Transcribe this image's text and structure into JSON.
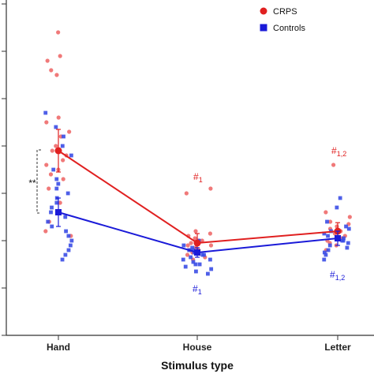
{
  "colors": {
    "crps": "#e02020",
    "controls": "#1a1ad8",
    "crps_light": "#ee6a6a",
    "controls_light": "#3b4ee6",
    "axis": "#333333"
  },
  "chart_data": {
    "type": "line",
    "xlabel": "Stimulus type",
    "ylabel": "",
    "categories": [
      "Hand",
      "House",
      "Letter"
    ],
    "ylim": [
      0,
      7
    ],
    "grid": false,
    "legend_placement": "top-right",
    "series": [
      {
        "name": "CRPS",
        "marker": "circle",
        "means": [
          3.9,
          1.95,
          2.2
        ],
        "errors": [
          0.45,
          0.2,
          0.18
        ],
        "points": [
          [
            6.4,
            5.9,
            5.8,
            5.6,
            5.5,
            4.6,
            4.5,
            4.3,
            4.2,
            4.0,
            3.9,
            3.8,
            3.7,
            3.6,
            3.5,
            3.4,
            3.3,
            3.1,
            2.8,
            2.6,
            2.4,
            2.2,
            2.1
          ],
          [
            3.1,
            3.0,
            2.2,
            2.15,
            2.1,
            2.05,
            2.0,
            2.0,
            1.95,
            1.9,
            1.9,
            1.85,
            1.8,
            1.8,
            1.75,
            1.7,
            1.65,
            1.6
          ],
          [
            3.6,
            2.6,
            2.5,
            2.4,
            2.35,
            2.3,
            2.25,
            2.2,
            2.15,
            2.1,
            2.05,
            2.0,
            1.95,
            1.9,
            1.8
          ]
        ]
      },
      {
        "name": "Controls",
        "marker": "square",
        "means": [
          2.6,
          1.75,
          2.05
        ],
        "errors": [
          0.3,
          0.1,
          0.15
        ],
        "points": [
          [
            4.7,
            4.4,
            4.2,
            4.0,
            3.8,
            3.5,
            3.3,
            3.2,
            3.1,
            3.0,
            2.9,
            2.8,
            2.7,
            2.6,
            2.5,
            2.4,
            2.3,
            2.2,
            2.1,
            2.0,
            1.9,
            1.8,
            1.7,
            1.6
          ],
          [
            2.0,
            1.9,
            1.85,
            1.8,
            1.8,
            1.75,
            1.7,
            1.7,
            1.65,
            1.6,
            1.6,
            1.55,
            1.5,
            1.5,
            1.45,
            1.4,
            1.35,
            1.3
          ],
          [
            2.9,
            2.7,
            2.4,
            2.3,
            2.25,
            2.2,
            2.15,
            2.1,
            2.05,
            2.0,
            2.0,
            1.95,
            1.9,
            1.85,
            1.8,
            1.75,
            1.7,
            1.6
          ]
        ]
      }
    ],
    "annotations": {
      "significance": "**",
      "house_crps": [
        "#",
        "1"
      ],
      "letter_crps": [
        "#",
        "1,2"
      ],
      "house_controls": [
        "#",
        "1"
      ],
      "letter_controls": [
        "#",
        "1,2"
      ]
    }
  }
}
